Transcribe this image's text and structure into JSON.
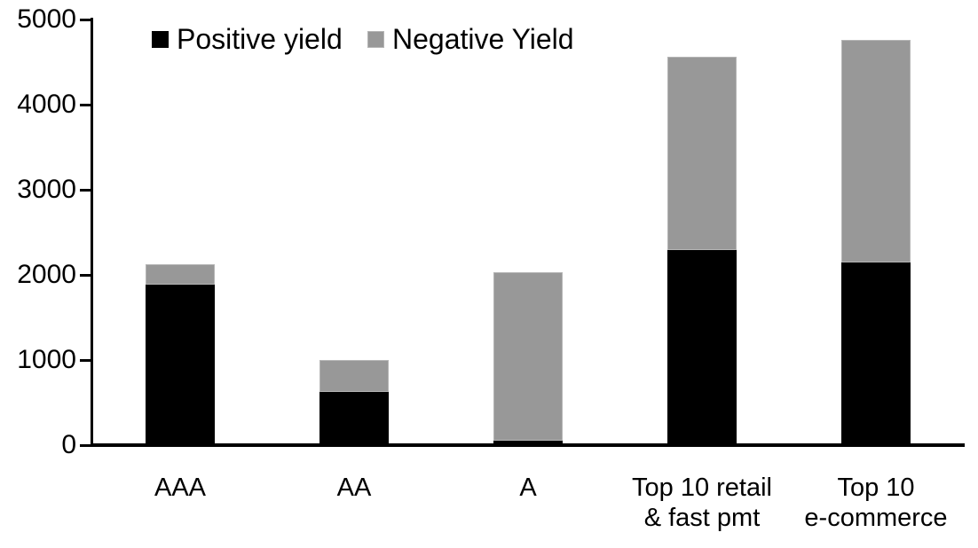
{
  "chart_data": {
    "type": "bar",
    "stacked": true,
    "title": "",
    "xlabel": "",
    "ylabel": "",
    "categories": [
      "AAA",
      "AA",
      "A",
      "Top 10 retail\n& fast pmt",
      "Top 10\ne-commerce"
    ],
    "series": [
      {
        "name": "Positive yield",
        "color": "#000000",
        "values": [
          1890,
          620,
          50,
          2290,
          2150
        ]
      },
      {
        "name": "Negative Yield",
        "color": "#989898",
        "values": [
          230,
          380,
          1980,
          2270,
          2610
        ]
      }
    ],
    "ylim": [
      0,
      5000
    ],
    "yticks": [
      0,
      1000,
      2000,
      3000,
      4000,
      5000
    ],
    "grid": false,
    "legend_position": "top"
  },
  "colors": {
    "positive": "#000000",
    "negative": "#989898",
    "axis": "#000000",
    "background": "#ffffff"
  }
}
